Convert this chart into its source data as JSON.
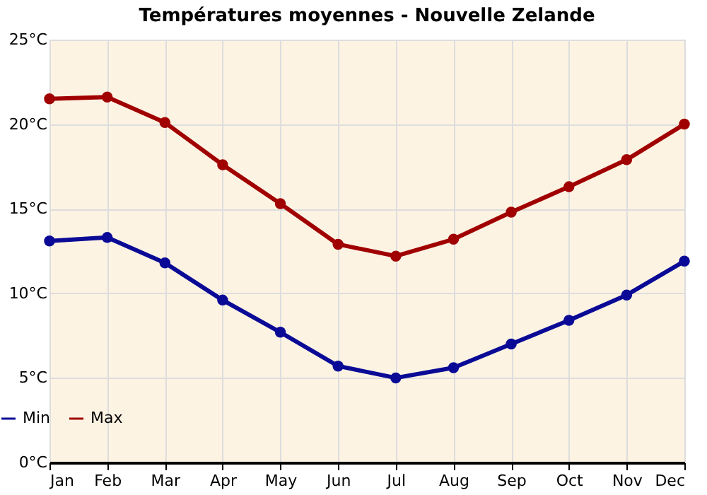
{
  "chart_data": {
    "type": "line",
    "title": "Températures moyennes - Nouvelle Zelande",
    "categories": [
      "Jan",
      "Feb",
      "Mar",
      "Apr",
      "May",
      "Jun",
      "Jul",
      "Aug",
      "Sep",
      "Oct",
      "Nov",
      "Dec"
    ],
    "series": [
      {
        "name": "Min",
        "color": "#0a0a96",
        "values": [
          13.1,
          13.3,
          11.8,
          9.6,
          7.7,
          5.7,
          5.0,
          5.6,
          7.0,
          8.4,
          9.9,
          11.9
        ]
      },
      {
        "name": "Max",
        "color": "#a00000",
        "values": [
          21.5,
          21.6,
          20.1,
          17.6,
          15.3,
          12.9,
          12.2,
          13.2,
          14.8,
          16.3,
          17.9,
          20.0
        ]
      }
    ],
    "ylim": [
      0,
      25
    ],
    "yticks": [
      {
        "value": 0,
        "label": "0°C"
      },
      {
        "value": 5,
        "label": "5°C"
      },
      {
        "value": 10,
        "label": "10°C"
      },
      {
        "value": 15,
        "label": "15°C"
      },
      {
        "value": 20,
        "label": "20°C"
      },
      {
        "value": 25,
        "label": "25°C"
      }
    ],
    "grid": true,
    "legend": "bottom left",
    "marker": "circle",
    "line_style": "solid"
  }
}
